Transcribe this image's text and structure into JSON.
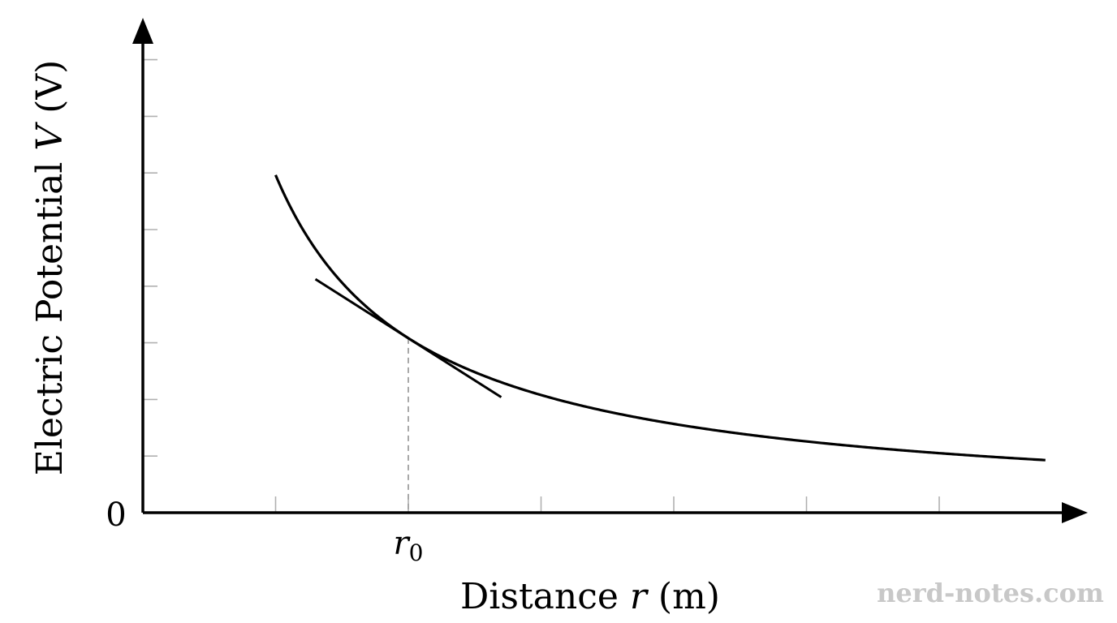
{
  "chart_data": {
    "type": "line",
    "xlabel_prefix": "Distance ",
    "xlabel_var": "r",
    "xlabel_suffix": " (m)",
    "ylabel_prefix": "Electric Potential ",
    "ylabel_var": "V",
    "ylabel_suffix": " (V)",
    "origin_label": "0",
    "marker_label_base": "r",
    "marker_label_sub": "0",
    "xlim": [
      0,
      7
    ],
    "ylim": [
      0,
      8.7
    ],
    "x_ticks": [
      1,
      2,
      3,
      4,
      5,
      6
    ],
    "y_ticks": [
      1,
      2,
      3,
      4,
      5,
      6,
      7,
      8
    ],
    "r0": 2,
    "series": [
      {
        "function": "V = 6.38 / (r + 0.07)",
        "x_range": [
          1,
          6.8
        ]
      }
    ],
    "tangent": {
      "at_x": 2,
      "x_range": [
        1.3,
        2.7
      ]
    },
    "grid": false
  },
  "watermark": "nerd-notes.com"
}
